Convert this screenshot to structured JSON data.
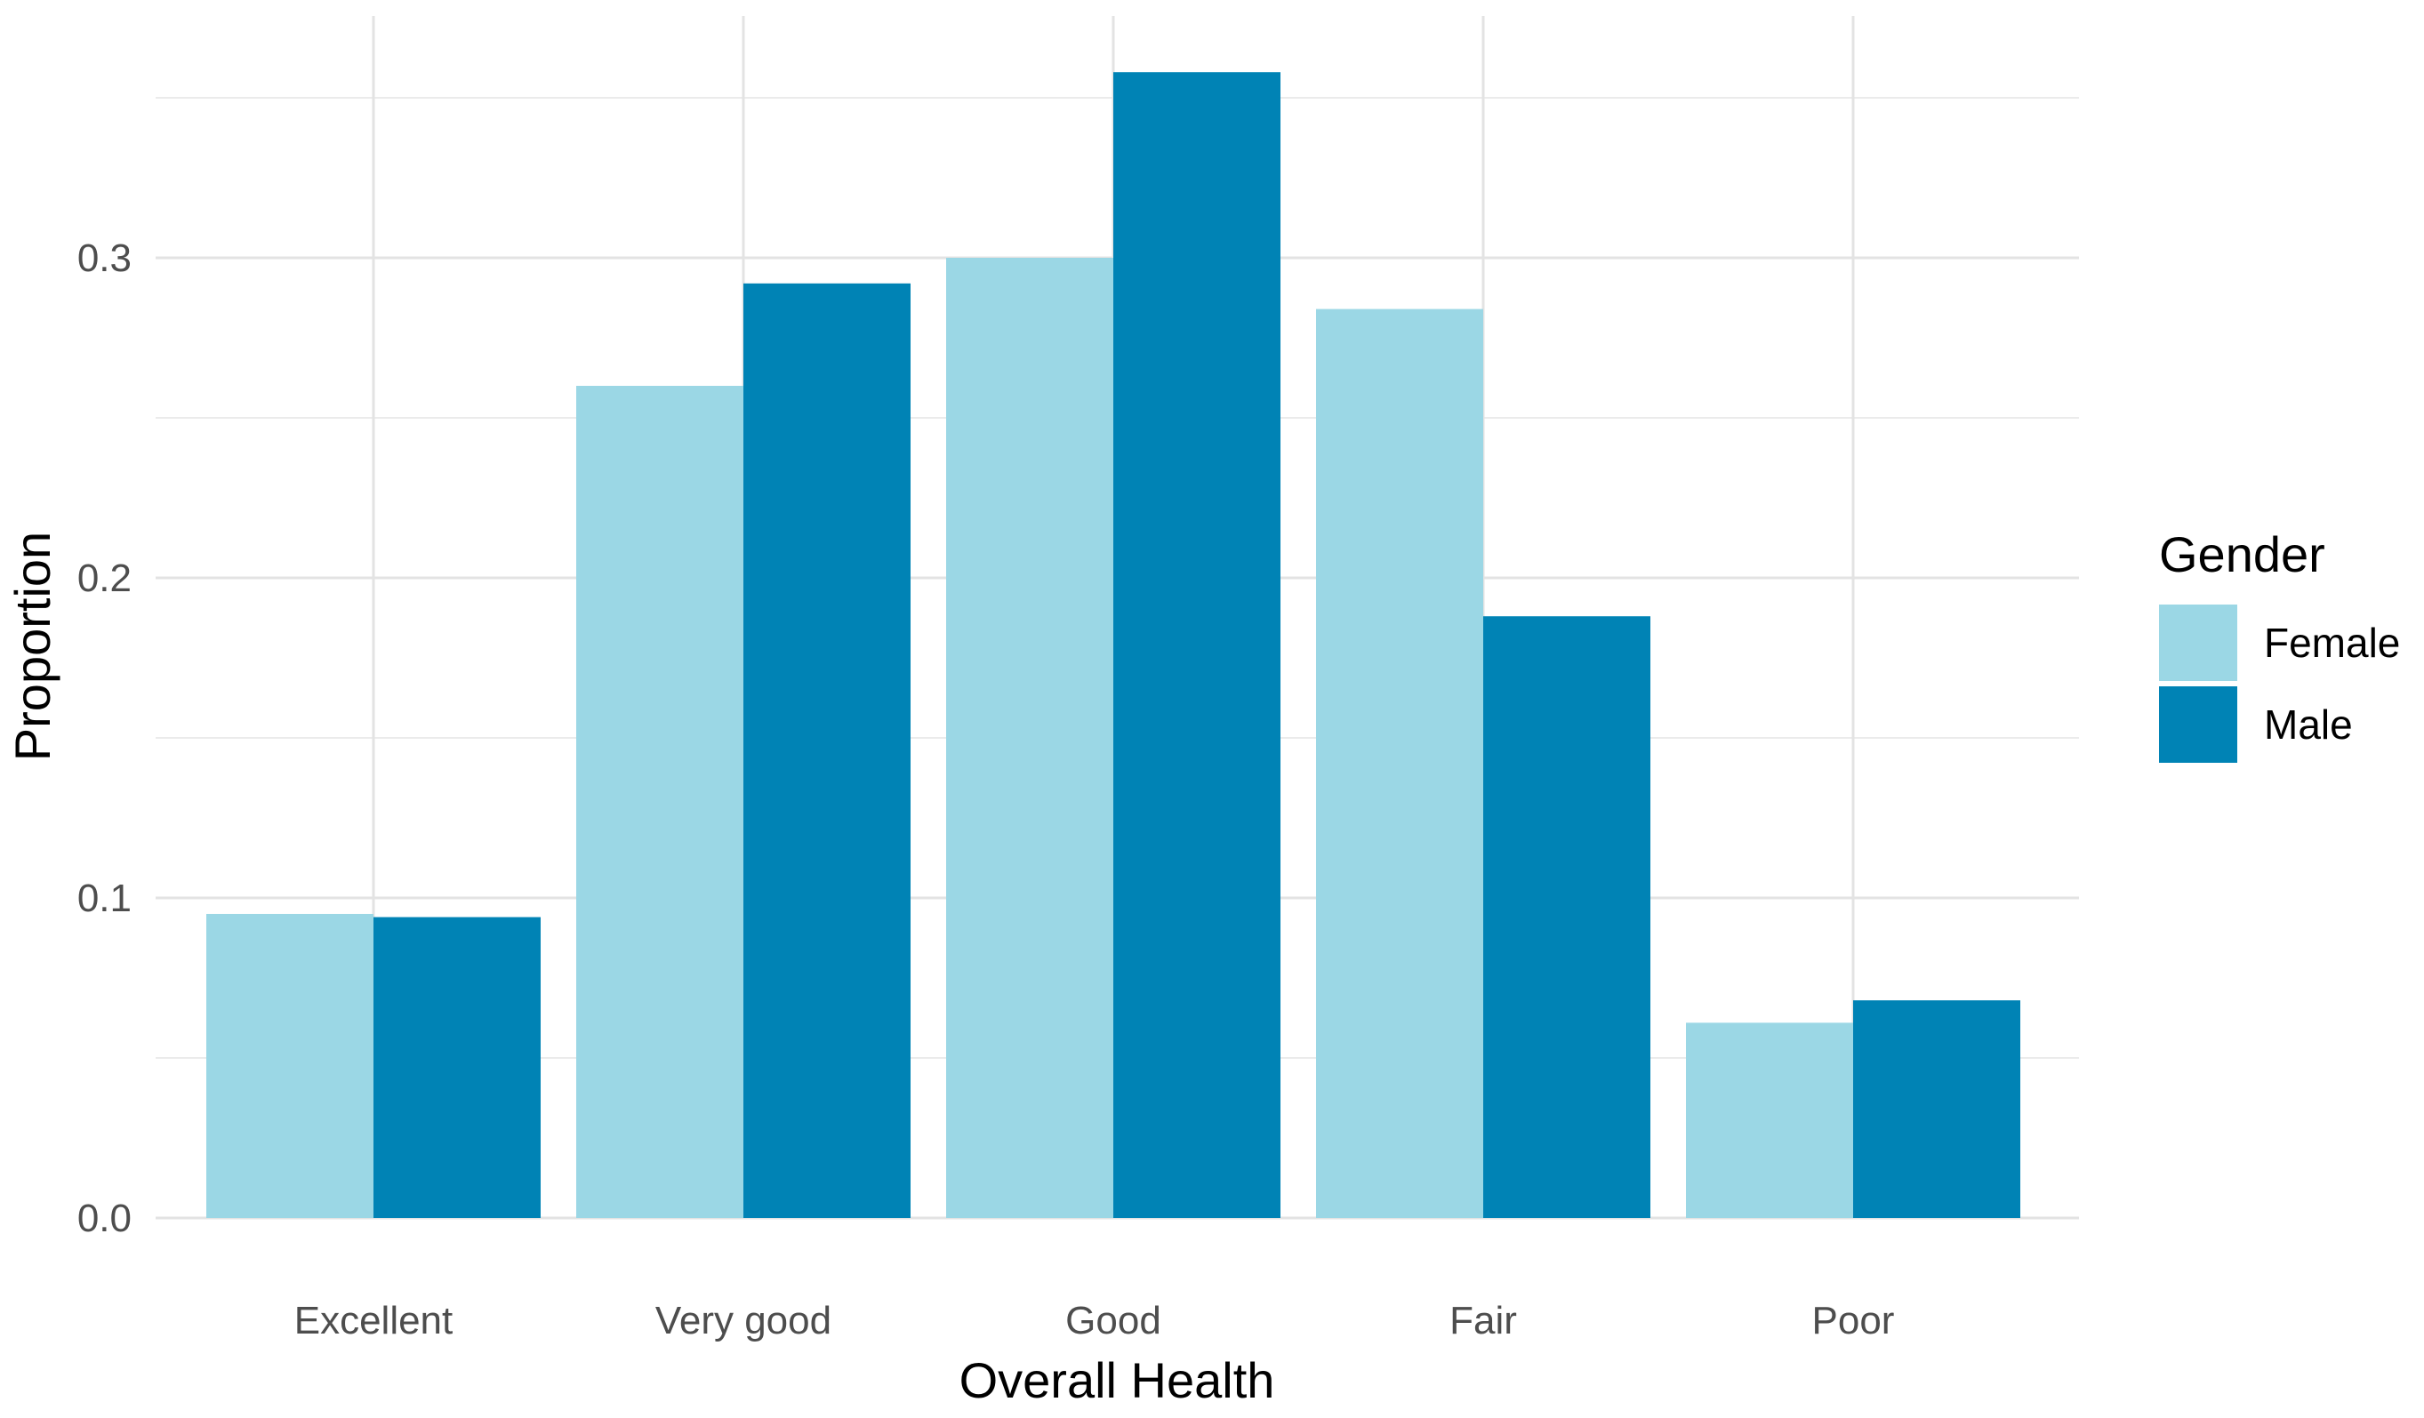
{
  "chart_data": {
    "type": "bar",
    "title": "",
    "xlabel": "Overall Health",
    "ylabel": "Proportion",
    "categories": [
      "Excellent",
      "Very good",
      "Good",
      "Fair",
      "Poor"
    ],
    "series": [
      {
        "name": "Female",
        "color": "#9bd7e5",
        "values": [
          0.095,
          0.26,
          0.3,
          0.284,
          0.061
        ]
      },
      {
        "name": "Male",
        "color": "#0083b5",
        "values": [
          0.094,
          0.292,
          0.358,
          0.188,
          0.068
        ]
      }
    ],
    "ylim": [
      0,
      0.36
    ],
    "yticks": [
      {
        "value": 0.0,
        "label": "0.0"
      },
      {
        "value": 0.1,
        "label": "0.1"
      },
      {
        "value": 0.2,
        "label": "0.2"
      },
      {
        "value": 0.3,
        "label": "0.3"
      }
    ],
    "grid": true,
    "legend": {
      "title": "Gender",
      "placement": "right"
    }
  }
}
